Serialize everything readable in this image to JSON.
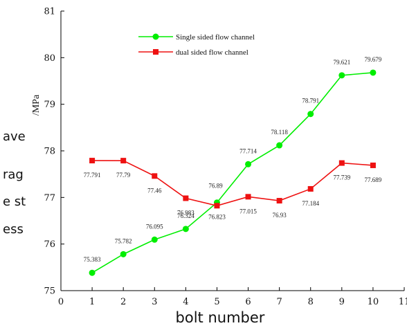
{
  "chart_data": {
    "type": "line",
    "xlabel": "bolt number",
    "ylabel_lines": [
      "ave",
      "rag",
      "e st",
      "ess"
    ],
    "y_unit": "/MPa",
    "xlim": [
      0,
      11
    ],
    "ylim": [
      75,
      81
    ],
    "x_ticks": [
      "0",
      "1",
      "2",
      "3",
      "4",
      "5",
      "6",
      "7",
      "8",
      "9",
      "10",
      "11"
    ],
    "y_ticks": [
      "75",
      "76",
      "77",
      "78",
      "79",
      "80",
      "81"
    ],
    "x": [
      1,
      2,
      3,
      4,
      5,
      6,
      7,
      8,
      9,
      10
    ],
    "series": [
      {
        "name": "Single sided flow channel",
        "color": "#00ee00",
        "marker": "circle",
        "values": [
          75.383,
          75.782,
          76.095,
          76.324,
          76.89,
          77.714,
          78.118,
          78.791,
          79.621,
          79.679
        ],
        "labels": [
          "75.383",
          "75.782",
          "76.095",
          "76.324",
          "76.89",
          "77.714",
          "78.118",
          "78.791",
          "79.621",
          "79.679"
        ]
      },
      {
        "name": "dual sided flow channel",
        "color": "#ee1111",
        "marker": "square",
        "values": [
          77.791,
          77.79,
          77.46,
          76.983,
          76.823,
          77.015,
          76.93,
          77.184,
          77.739,
          77.689
        ],
        "labels": [
          "77.791",
          "77.79",
          "77.46",
          "76.983",
          "76.823",
          "77.015",
          "76.93",
          "77.184",
          "77.739",
          "77.689"
        ]
      }
    ],
    "grid": false,
    "legend": "top-center"
  }
}
